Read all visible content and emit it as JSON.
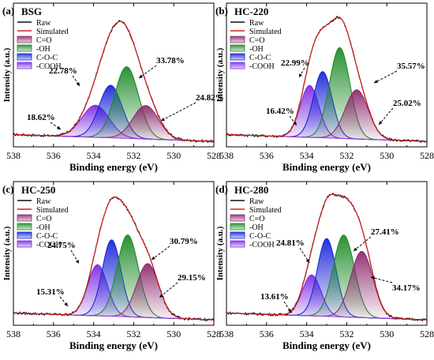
{
  "chart_data": [
    {
      "type": "line",
      "panel_label": "(a)",
      "sample": "BSG",
      "xlabel": "Binding energy (eV)",
      "ylabel": "Intensity (a.u.)",
      "x_ticks": [
        538,
        536,
        534,
        532,
        530,
        528
      ],
      "xlim": [
        538,
        528
      ],
      "legend": [
        "Raw",
        "Simulated",
        "C=O",
        "-OH",
        "C-O-C",
        "-COOH"
      ],
      "components": [
        {
          "name": "C=O",
          "center": 531.4,
          "height": 0.245,
          "fwhm": 1.5,
          "color": "#8e2a6e",
          "percent": "24.82%"
        },
        {
          "name": "-OH",
          "center": 532.35,
          "height": 0.525,
          "fwhm": 1.4,
          "color": "#1e8c2a",
          "percent": "33.78%"
        },
        {
          "name": "C-O-C",
          "center": 533.15,
          "height": 0.385,
          "fwhm": 1.35,
          "color": "#1a26d8",
          "percent": "22.78%"
        },
        {
          "name": "-COOH",
          "center": 533.9,
          "height": 0.235,
          "fwhm": 1.6,
          "color": "#7d2be0",
          "percent": "18.62%"
        }
      ]
    },
    {
      "type": "line",
      "panel_label": "(b)",
      "sample": "HC-220",
      "xlabel": "Binding energy (eV)",
      "ylabel": "Intensity (a.u.)",
      "x_ticks": [
        538,
        536,
        534,
        532,
        530,
        528
      ],
      "xlim": [
        538,
        528
      ],
      "legend": [
        "Raw",
        "Simulated",
        "C=O",
        "-OH",
        "C-O-C",
        "-COOH"
      ],
      "components": [
        {
          "name": "C=O",
          "center": 531.5,
          "height": 0.36,
          "fwhm": 1.35,
          "color": "#8e2a6e",
          "percent": "25.02%"
        },
        {
          "name": "-OH",
          "center": 532.35,
          "height": 0.665,
          "fwhm": 1.2,
          "color": "#1e8c2a",
          "percent": "35.57%"
        },
        {
          "name": "C-O-C",
          "center": 533.2,
          "height": 0.485,
          "fwhm": 1.1,
          "color": "#1a26d8",
          "percent": "22.99%"
        },
        {
          "name": "-COOH",
          "center": 533.85,
          "height": 0.38,
          "fwhm": 1.1,
          "color": "#7d2be0",
          "percent": "16.42%"
        }
      ]
    },
    {
      "type": "line",
      "panel_label": "(c)",
      "sample": "HC-250",
      "xlabel": "Binding energy (eV)",
      "ylabel": "Intensity (a.u.)",
      "x_ticks": [
        538,
        536,
        534,
        532,
        530,
        528
      ],
      "xlim": [
        538,
        528
      ],
      "legend": [
        "Raw",
        "Simulated",
        "C=O",
        "-OH",
        "C-O-C",
        "-COOH"
      ],
      "components": [
        {
          "name": "C=O",
          "center": 531.3,
          "height": 0.395,
          "fwhm": 1.3,
          "color": "#8e2a6e",
          "percent": "29.15%"
        },
        {
          "name": "-OH",
          "center": 532.3,
          "height": 0.6,
          "fwhm": 1.25,
          "color": "#1e8c2a",
          "percent": "30.79%"
        },
        {
          "name": "C-O-C",
          "center": 533.1,
          "height": 0.56,
          "fwhm": 1.1,
          "color": "#1a26d8",
          "percent": "24.75%"
        },
        {
          "name": "-COOH",
          "center": 533.8,
          "height": 0.375,
          "fwhm": 1.15,
          "color": "#7d2be0",
          "percent": "15.31%"
        }
      ]
    },
    {
      "type": "line",
      "panel_label": "(d)",
      "sample": "HC-280",
      "xlabel": "Binding energy (eV)",
      "ylabel": "Intensity (a.u.)",
      "x_ticks": [
        538,
        536,
        534,
        532,
        530,
        528
      ],
      "xlim": [
        538,
        528
      ],
      "legend": [
        "Raw",
        "Simulated",
        "C=O",
        "-OH",
        "C-O-C",
        "-COOH"
      ],
      "components": [
        {
          "name": "C=O",
          "center": 531.25,
          "height": 0.485,
          "fwhm": 1.3,
          "color": "#8e2a6e",
          "percent": "34.17%"
        },
        {
          "name": "-OH",
          "center": 532.15,
          "height": 0.6,
          "fwhm": 1.25,
          "color": "#1e8c2a",
          "percent": "27.41%"
        },
        {
          "name": "C-O-C",
          "center": 533.0,
          "height": 0.57,
          "fwhm": 1.1,
          "color": "#1a26d8",
          "percent": "24.81%"
        },
        {
          "name": "-COOH",
          "center": 533.75,
          "height": 0.3,
          "fwhm": 1.1,
          "color": "#7d2be0",
          "percent": "13.61%"
        }
      ]
    }
  ]
}
